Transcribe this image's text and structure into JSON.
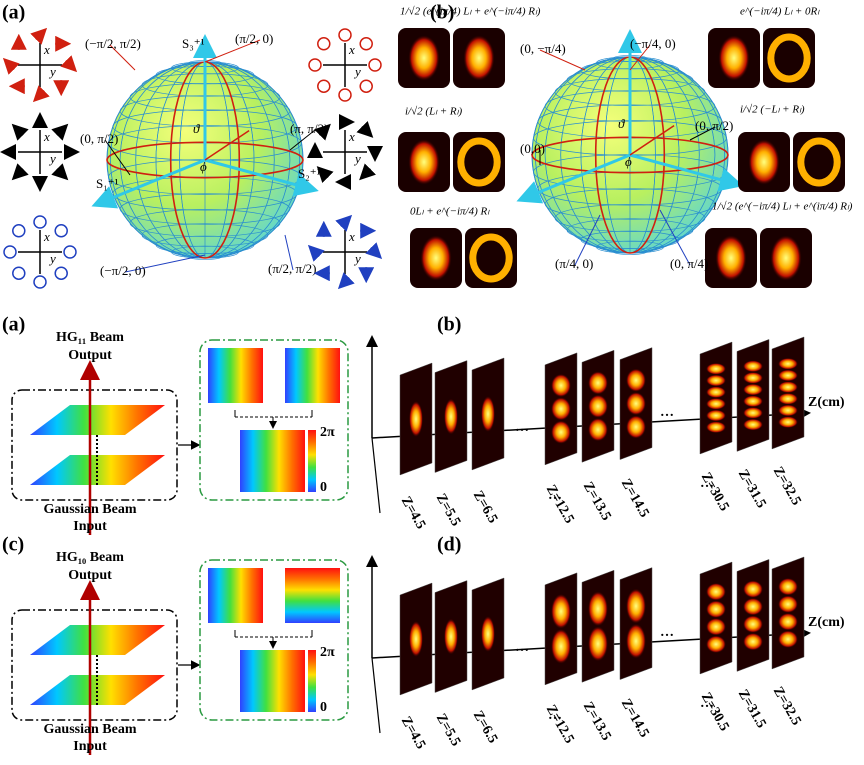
{
  "sphere_panel": {
    "label": "(a)",
    "axis_labels": {
      "s3": "S₃⁺¹",
      "s1": "S₁⁺¹",
      "s2": "S₂⁺¹"
    },
    "angles": {
      "theta": "ϑ",
      "phi": "ϕ"
    },
    "coordinates": [
      "(−π/2, π/2)",
      "(π/2, 0)",
      "(0, π/2)",
      "(π, π/2)",
      "(−π/2, 0)",
      "(π/2, π/2)"
    ],
    "icon_axes": {
      "x": "x",
      "y": "y"
    }
  },
  "mode_panel": {
    "label": "(b)",
    "axis_labels": {
      "theta": "ϑ",
      "phi": "ϕ"
    },
    "states": [
      {
        "coordinate": "(0, −π/4)",
        "formula": "1/√2 (e^(iπ/4) Lₗ + e^(−iπ/4) Rₗ)"
      },
      {
        "coordinate": "(−π/4, 0)",
        "formula": "e^(−iπ/4) Lₗ + 0Rₗ"
      },
      {
        "coordinate": "(0,0)",
        "formula": "i/√2 (Lₗ + Rₗ)"
      },
      {
        "coordinate": "(0, π/2)",
        "formula": "i/√2 (−Lₗ + Rₗ)"
      },
      {
        "coordinate": "(π/4, 0)",
        "formula": "0Lₗ + e^(−iπ/4) Rₗ"
      },
      {
        "coordinate": "(0, π/4)",
        "formula": "1/√2 (e^(−iπ/4) Lₗ + e^(iπ/4) Rₗ)"
      }
    ]
  },
  "hg11_setup": {
    "label": "(a)",
    "output": [
      "HG₁₁ Beam",
      "Output"
    ],
    "input": [
      "Gaussian Beam",
      "Input"
    ],
    "scale_max": "2π",
    "scale_min": "0"
  },
  "hg11_propagation": {
    "label": "(b)",
    "axis": "Z(cm)",
    "ellipsis": "…",
    "positions": [
      "Z=4.5",
      "Z=5.5",
      "Z=6.5",
      "Z=12.5",
      "Z=13.5",
      "Z=14.5",
      "Z=30.5",
      "Z=31.5",
      "Z=32.5"
    ]
  },
  "hg10_setup": {
    "label": "(c)",
    "output": [
      "HG₁₀ Beam",
      "Output"
    ],
    "input": [
      "Gaussian Beam",
      "Input"
    ],
    "scale_max": "2π",
    "scale_min": "0"
  },
  "hg10_propagation": {
    "label": "(d)",
    "axis": "Z(cm)",
    "ellipsis": "…",
    "positions": [
      "Z=4.5",
      "Z=5.5",
      "Z=6.5",
      "Z=12.5",
      "Z=13.5",
      "Z=14.5",
      "Z=30.5",
      "Z=31.5",
      "Z=32.5"
    ]
  }
}
